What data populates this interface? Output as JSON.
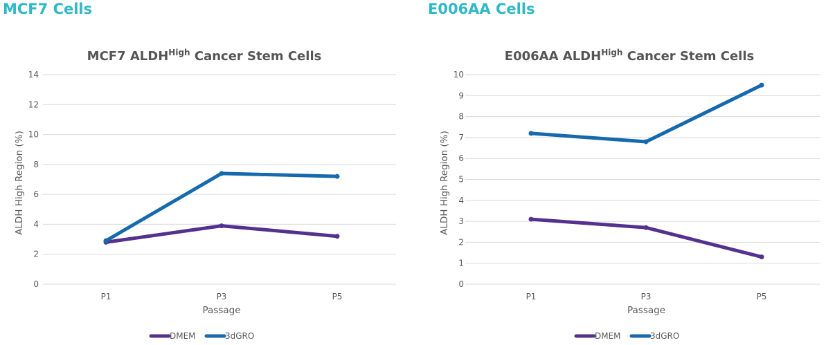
{
  "headings": [
    "MCF7 Cells",
    "E006AA Cells"
  ],
  "colors": {
    "heading": "#2fb8c6",
    "DMEM": "#55318f",
    "3dGRO": "#1569ad",
    "grid": "#d9d9d9"
  },
  "chart_data": [
    {
      "type": "line",
      "title": "MCF7 ALDH",
      "title_sup": "High",
      "title_rest": " Cancer Stem Cells",
      "xlabel": "Passage",
      "ylabel": "ALDH High Region (%)",
      "categories": [
        "P1",
        "P3",
        "P5"
      ],
      "ylim": [
        0,
        14
      ],
      "yticks": [
        0,
        2,
        4,
        6,
        8,
        10,
        12,
        14
      ],
      "grid": true,
      "legend": "bottom",
      "series": [
        {
          "name": "DMEM",
          "values": [
            2.8,
            3.9,
            3.2
          ]
        },
        {
          "name": "3dGRO",
          "values": [
            2.9,
            7.4,
            7.2
          ]
        }
      ]
    },
    {
      "type": "line",
      "title": "E006AA ALDH",
      "title_sup": "High",
      "title_rest": " Cancer Stem Cells",
      "xlabel": "Passage",
      "ylabel": "ALDH High Region (%)",
      "categories": [
        "P1",
        "P3",
        "P5"
      ],
      "ylim": [
        0,
        10
      ],
      "yticks": [
        0,
        1,
        2,
        3,
        4,
        5,
        6,
        7,
        8,
        9,
        10
      ],
      "grid": true,
      "legend": "bottom",
      "series": [
        {
          "name": "DMEM",
          "values": [
            3.1,
            2.7,
            1.3
          ]
        },
        {
          "name": "3dGRO",
          "values": [
            7.2,
            6.8,
            9.5
          ]
        }
      ]
    }
  ]
}
